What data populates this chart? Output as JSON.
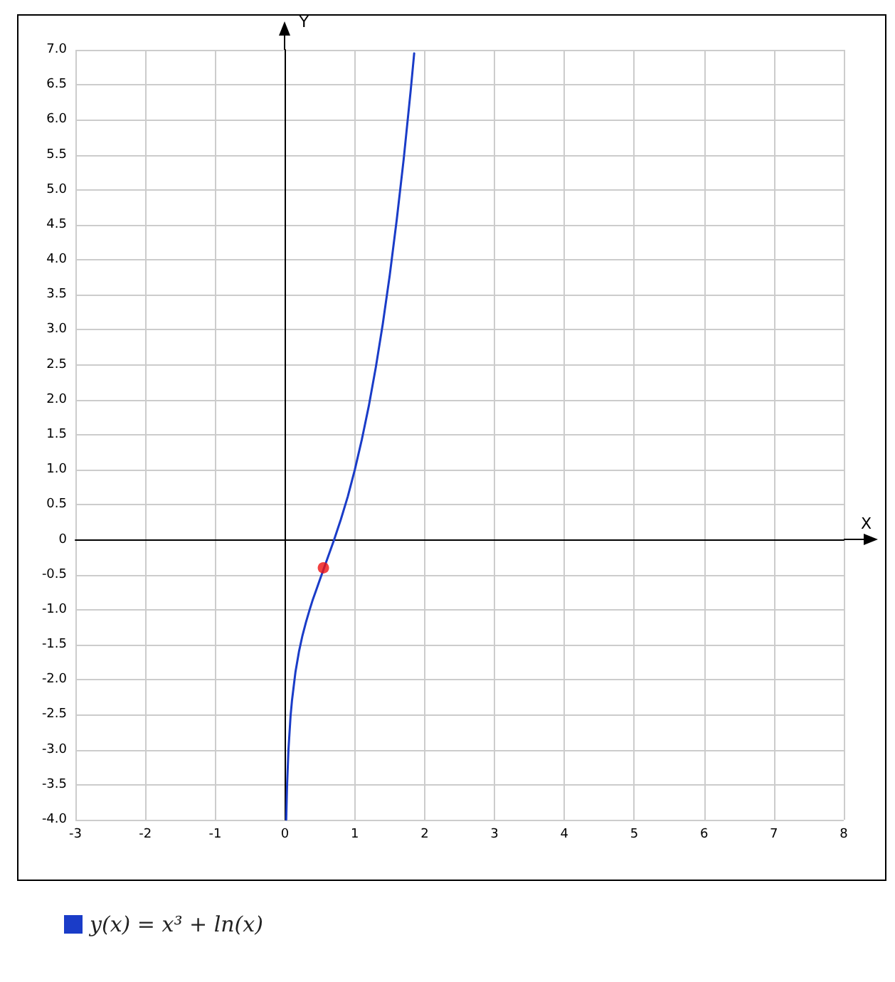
{
  "chart_data": {
    "type": "line",
    "xlabel": "X",
    "ylabel": "Y",
    "xlim": [
      -3,
      8
    ],
    "xticks": [
      -3,
      -2,
      -1,
      0,
      1,
      2,
      3,
      4,
      5,
      6,
      7,
      8
    ],
    "ylim": [
      -4,
      7
    ],
    "yticks": [
      {
        "value": -4,
        "label": "-4.0"
      },
      {
        "value": -3.5,
        "label": "-3.5"
      },
      {
        "value": -3,
        "label": "-3.0"
      },
      {
        "value": -2.5,
        "label": "-2.5"
      },
      {
        "value": -2,
        "label": "-2.0"
      },
      {
        "value": -1.5,
        "label": "-1.5"
      },
      {
        "value": -1,
        "label": "-1.0"
      },
      {
        "value": -0.5,
        "label": "-0.5"
      },
      0,
      {
        "value": 0.5,
        "label": "0.5"
      },
      {
        "value": 1,
        "label": "1.0"
      },
      {
        "value": 1.5,
        "label": "1.5"
      },
      {
        "value": 2,
        "label": "2.0"
      },
      {
        "value": 2.5,
        "label": "2.5"
      },
      {
        "value": 3,
        "label": "3.0"
      },
      {
        "value": 3.5,
        "label": "3.5"
      },
      {
        "value": 4,
        "label": "4.0"
      },
      {
        "value": 4.5,
        "label": "4.5"
      },
      {
        "value": 5,
        "label": "5.0"
      },
      {
        "value": 5.5,
        "label": "5.5"
      },
      {
        "value": 6,
        "label": "6.0"
      },
      {
        "value": 6.5,
        "label": "6.5"
      },
      {
        "value": 7,
        "label": "7.0"
      }
    ],
    "grid": true,
    "legend": "bottom left",
    "series": [
      {
        "name": "y(x) = x³ + ln(x)",
        "color": "#1a3cc8",
        "marker": "none",
        "line_style": "solid",
        "x": [
          0.018,
          0.02,
          0.03,
          0.05,
          0.08,
          0.1,
          0.15,
          0.2,
          0.25,
          0.3,
          0.35,
          0.4,
          0.45,
          0.5,
          0.55,
          0.6,
          0.7,
          0.8,
          0.9,
          1.0,
          1.1,
          1.2,
          1.3,
          1.4,
          1.5,
          1.6,
          1.7,
          1.8,
          1.85
        ],
        "values": [
          -4.0,
          -3.91,
          -3.51,
          -3.0,
          -2.52,
          -2.3,
          -1.89,
          -1.6,
          -1.37,
          -1.18,
          -1.01,
          -0.85,
          -0.71,
          -0.57,
          -0.43,
          -0.29,
          -0.01,
          0.29,
          0.62,
          1.0,
          1.43,
          1.91,
          2.46,
          3.08,
          3.78,
          4.57,
          5.44,
          6.42,
          6.95
        ]
      },
      {
        "type": "scatter",
        "color": "#ee1111",
        "marker": "circle",
        "x": [
          0.55
        ],
        "values": [
          -0.4
        ]
      }
    ]
  }
}
